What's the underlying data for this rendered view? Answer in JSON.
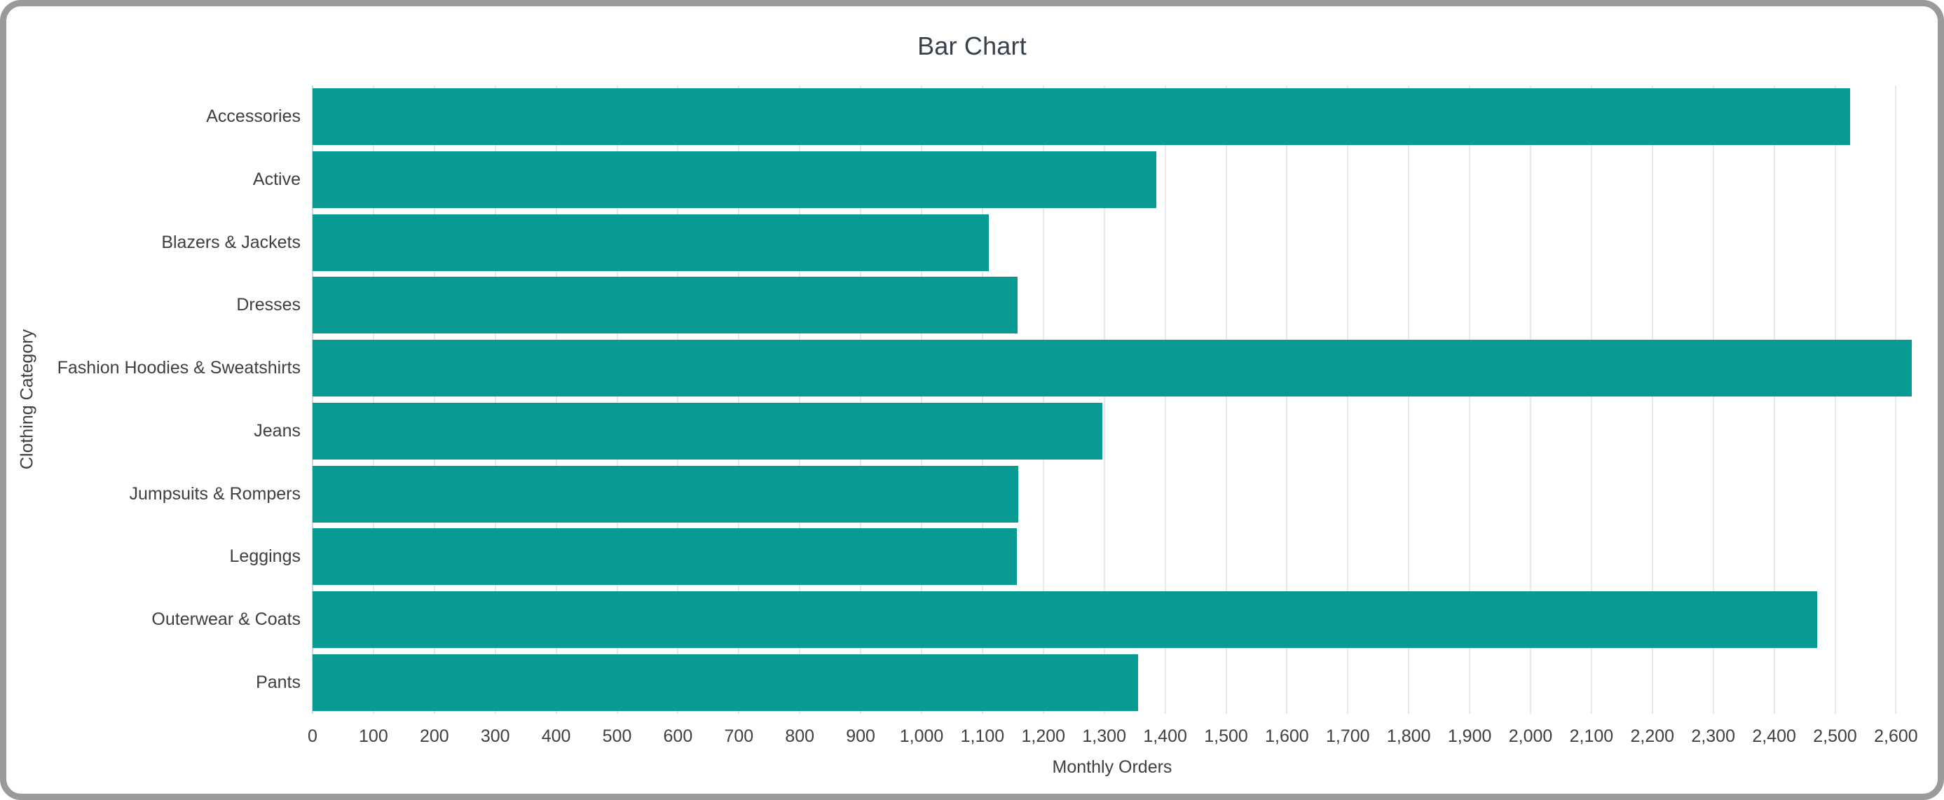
{
  "ui": {
    "frame_color": "#9a9a9a",
    "background_color": "#ffffff"
  },
  "chart_data": {
    "type": "bar",
    "orientation": "horizontal",
    "title": "Bar Chart",
    "xlabel": "Monthly Orders",
    "ylabel": "Clothing Category",
    "categories": [
      "Accessories",
      "Active",
      "Blazers & Jackets",
      "Dresses",
      "Fashion Hoodies & Sweatshirts",
      "Jeans",
      "Jumpsuits & Rompers",
      "Leggings",
      "Outerwear & Coats",
      "Pants"
    ],
    "values": [
      2525,
      1386,
      1110,
      1158,
      2626,
      1297,
      1159,
      1157,
      2471,
      1356
    ],
    "xlim": [
      0,
      2626
    ],
    "x_ticks": [
      0,
      100,
      200,
      300,
      400,
      500,
      600,
      700,
      800,
      900,
      1000,
      1100,
      1200,
      1300,
      1400,
      1500,
      1600,
      1700,
      1800,
      1900,
      2000,
      2100,
      2200,
      2300,
      2400,
      2500,
      2600
    ],
    "grid": true,
    "legend": false,
    "bar_color": "#099a94",
    "gridline_color": "#e8e8e8",
    "axis_line_color": "#d5d5d5",
    "text_color": "#3c4043",
    "title_color": "#37414b"
  }
}
